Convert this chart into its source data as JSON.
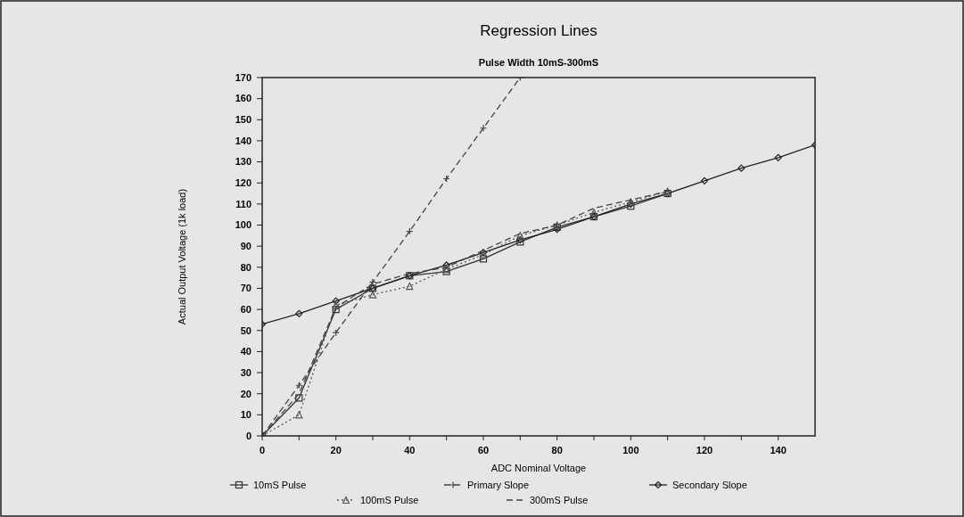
{
  "chart_data": {
    "type": "line",
    "title": "Regression Lines",
    "subtitle": "Pulse Width 10mS-300mS",
    "xlabel": "ADC Nominal Voltage",
    "ylabel": "Actual Output Voltage (1k load)",
    "x": [
      0,
      10,
      20,
      30,
      40,
      50,
      60,
      70,
      80,
      90,
      100,
      110
    ],
    "xlim": [
      0,
      150
    ],
    "ylim": [
      0,
      170
    ],
    "xticks": [
      0,
      {
        "value": 10,
        "label": null
      },
      20,
      {
        "value": 30,
        "label": null
      },
      40,
      {
        "value": 50,
        "label": null
      },
      60,
      {
        "value": 70,
        "label": null
      },
      80,
      {
        "value": 90,
        "label": null
      },
      100,
      {
        "value": 110,
        "label": null
      },
      120,
      {
        "value": 130,
        "label": null
      },
      140
    ],
    "yticks": [
      0,
      10,
      20,
      30,
      40,
      50,
      60,
      70,
      80,
      90,
      100,
      110,
      120,
      130,
      140,
      150,
      160,
      170
    ],
    "legend": "bottom",
    "series": [
      {
        "name": "10mS Pulse",
        "color": "#333333",
        "marker": "square",
        "line_style": "solid",
        "values": [
          0,
          18,
          60,
          70,
          76,
          78,
          84,
          92,
          99,
          104,
          109,
          115
        ]
      },
      {
        "name": "Primary Slope",
        "color": "#444444",
        "marker": "cross",
        "line_style": "dashed",
        "x": [
          0,
          10,
          20,
          30,
          40,
          50,
          60,
          70
        ],
        "values": [
          0,
          24,
          49,
          73,
          97,
          122,
          146,
          170
        ]
      },
      {
        "name": "Secondary Slope",
        "color": "#222222",
        "marker": "diamond",
        "line_style": "solid",
        "x": [
          0,
          10,
          20,
          30,
          40,
          50,
          60,
          70,
          80,
          90,
          100,
          110,
          120,
          130,
          140,
          150
        ],
        "values": [
          53,
          58,
          64,
          70,
          76,
          81,
          87,
          93,
          98,
          104,
          110,
          115,
          121,
          127,
          132,
          138
        ]
      },
      {
        "name": "100mS Pulse",
        "color": "#555555",
        "marker": "triangle",
        "line_style": "dotted",
        "values": [
          0,
          10,
          62,
          67,
          71,
          79,
          86,
          95,
          100,
          106,
          111,
          116
        ]
      },
      {
        "name": "300mS Pulse",
        "color": "#444444",
        "marker": "none",
        "line_style": "dashed",
        "values": [
          0,
          20,
          61,
          72,
          77,
          80,
          88,
          96,
          100,
          108,
          112,
          116
        ]
      }
    ]
  }
}
